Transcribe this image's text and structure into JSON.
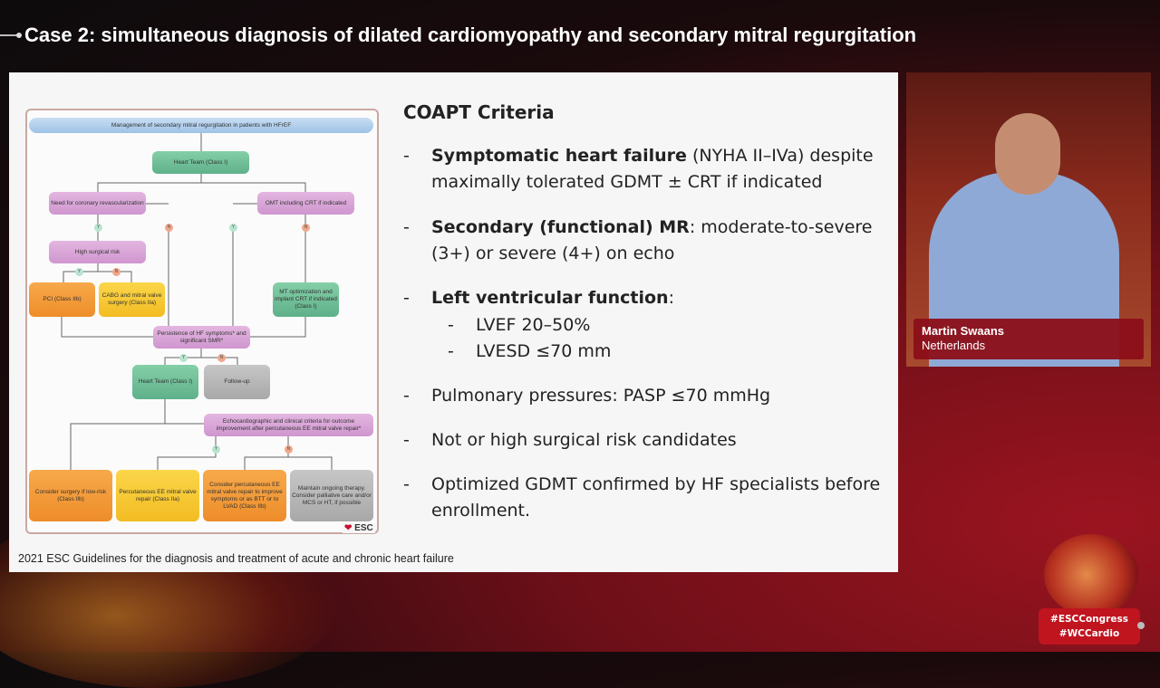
{
  "header": {
    "title": "Case 2: simultaneous diagnosis of dilated cardiomyopathy and secondary mitral regurgitation"
  },
  "flowchart": {
    "title": "Management of secondary mitral regurgitation in patients with HFrEF",
    "boxes": [
      "Heart Team (Class I)",
      "Need for coronary revascularization",
      "OMT including CRT if indicated",
      "High surgical risk",
      "PCI (Class IIb)",
      "CABG and mitral valve surgery (Class IIa)",
      "MT optimization and implant CRT if indicated (Class I)",
      "Persistence of HF symptoms* and significant SMR*",
      "Heart Team (Class I)",
      "Follow-up",
      "Echocardiographic and clinical criteria for outcome improvement after percutaneous EE mitral valve repair*",
      "Consider surgery if low-risk (Class IIb)",
      "Percutaneous EE mitral valve repair (Class IIa)",
      "Consider percutaneous EE mitral valve repair to improve symptoms or as BTT or to LVAD (Class IIb)",
      "Maintain ongoing therapy. Consider palliative care and/or MCS or HT, if possible"
    ],
    "yes": "Y",
    "no": "N",
    "logo": "ESC",
    "colors": {
      "purple": "#d9a5d8",
      "green": "#6fbf9a",
      "orange": "#f39a3a",
      "yellow": "#f7c936",
      "gray": "#b3b3b3",
      "blue": "#b5d1ee"
    }
  },
  "caption": "2021 ESC Guidelines for the diagnosis and treatment of acute and chronic heart failure",
  "criteria": {
    "title": "COAPT Criteria",
    "dash": "-",
    "items": [
      {
        "bold": "Symptomatic heart failure",
        "rest": " (NYHA II–IVa) despite maximally tolerated GDMT ± CRT if indicated"
      },
      {
        "bold": "Secondary (functional) MR",
        "rest": ": moderate-to-severe (3+) or severe (4+) on echo"
      },
      {
        "bold": "Left ventricular function",
        "rest": ":"
      },
      {
        "bold": "",
        "rest": "Pulmonary pressures: PASP ≤70 mmHg"
      },
      {
        "bold": "",
        "rest": "Not or high surgical risk candidates"
      },
      {
        "bold": "",
        "rest": "Optimized GDMT confirmed by HF specialists before enrollment."
      }
    ],
    "sub": [
      "LVEF 20–50%",
      "LVESD ≤70 mm"
    ]
  },
  "speaker": {
    "name": "Martin Swaans",
    "country": "Netherlands"
  },
  "hashtags": [
    "#ESCCongress",
    "#WCCardio"
  ],
  "colors": {
    "brand_red": "#c0141f"
  }
}
